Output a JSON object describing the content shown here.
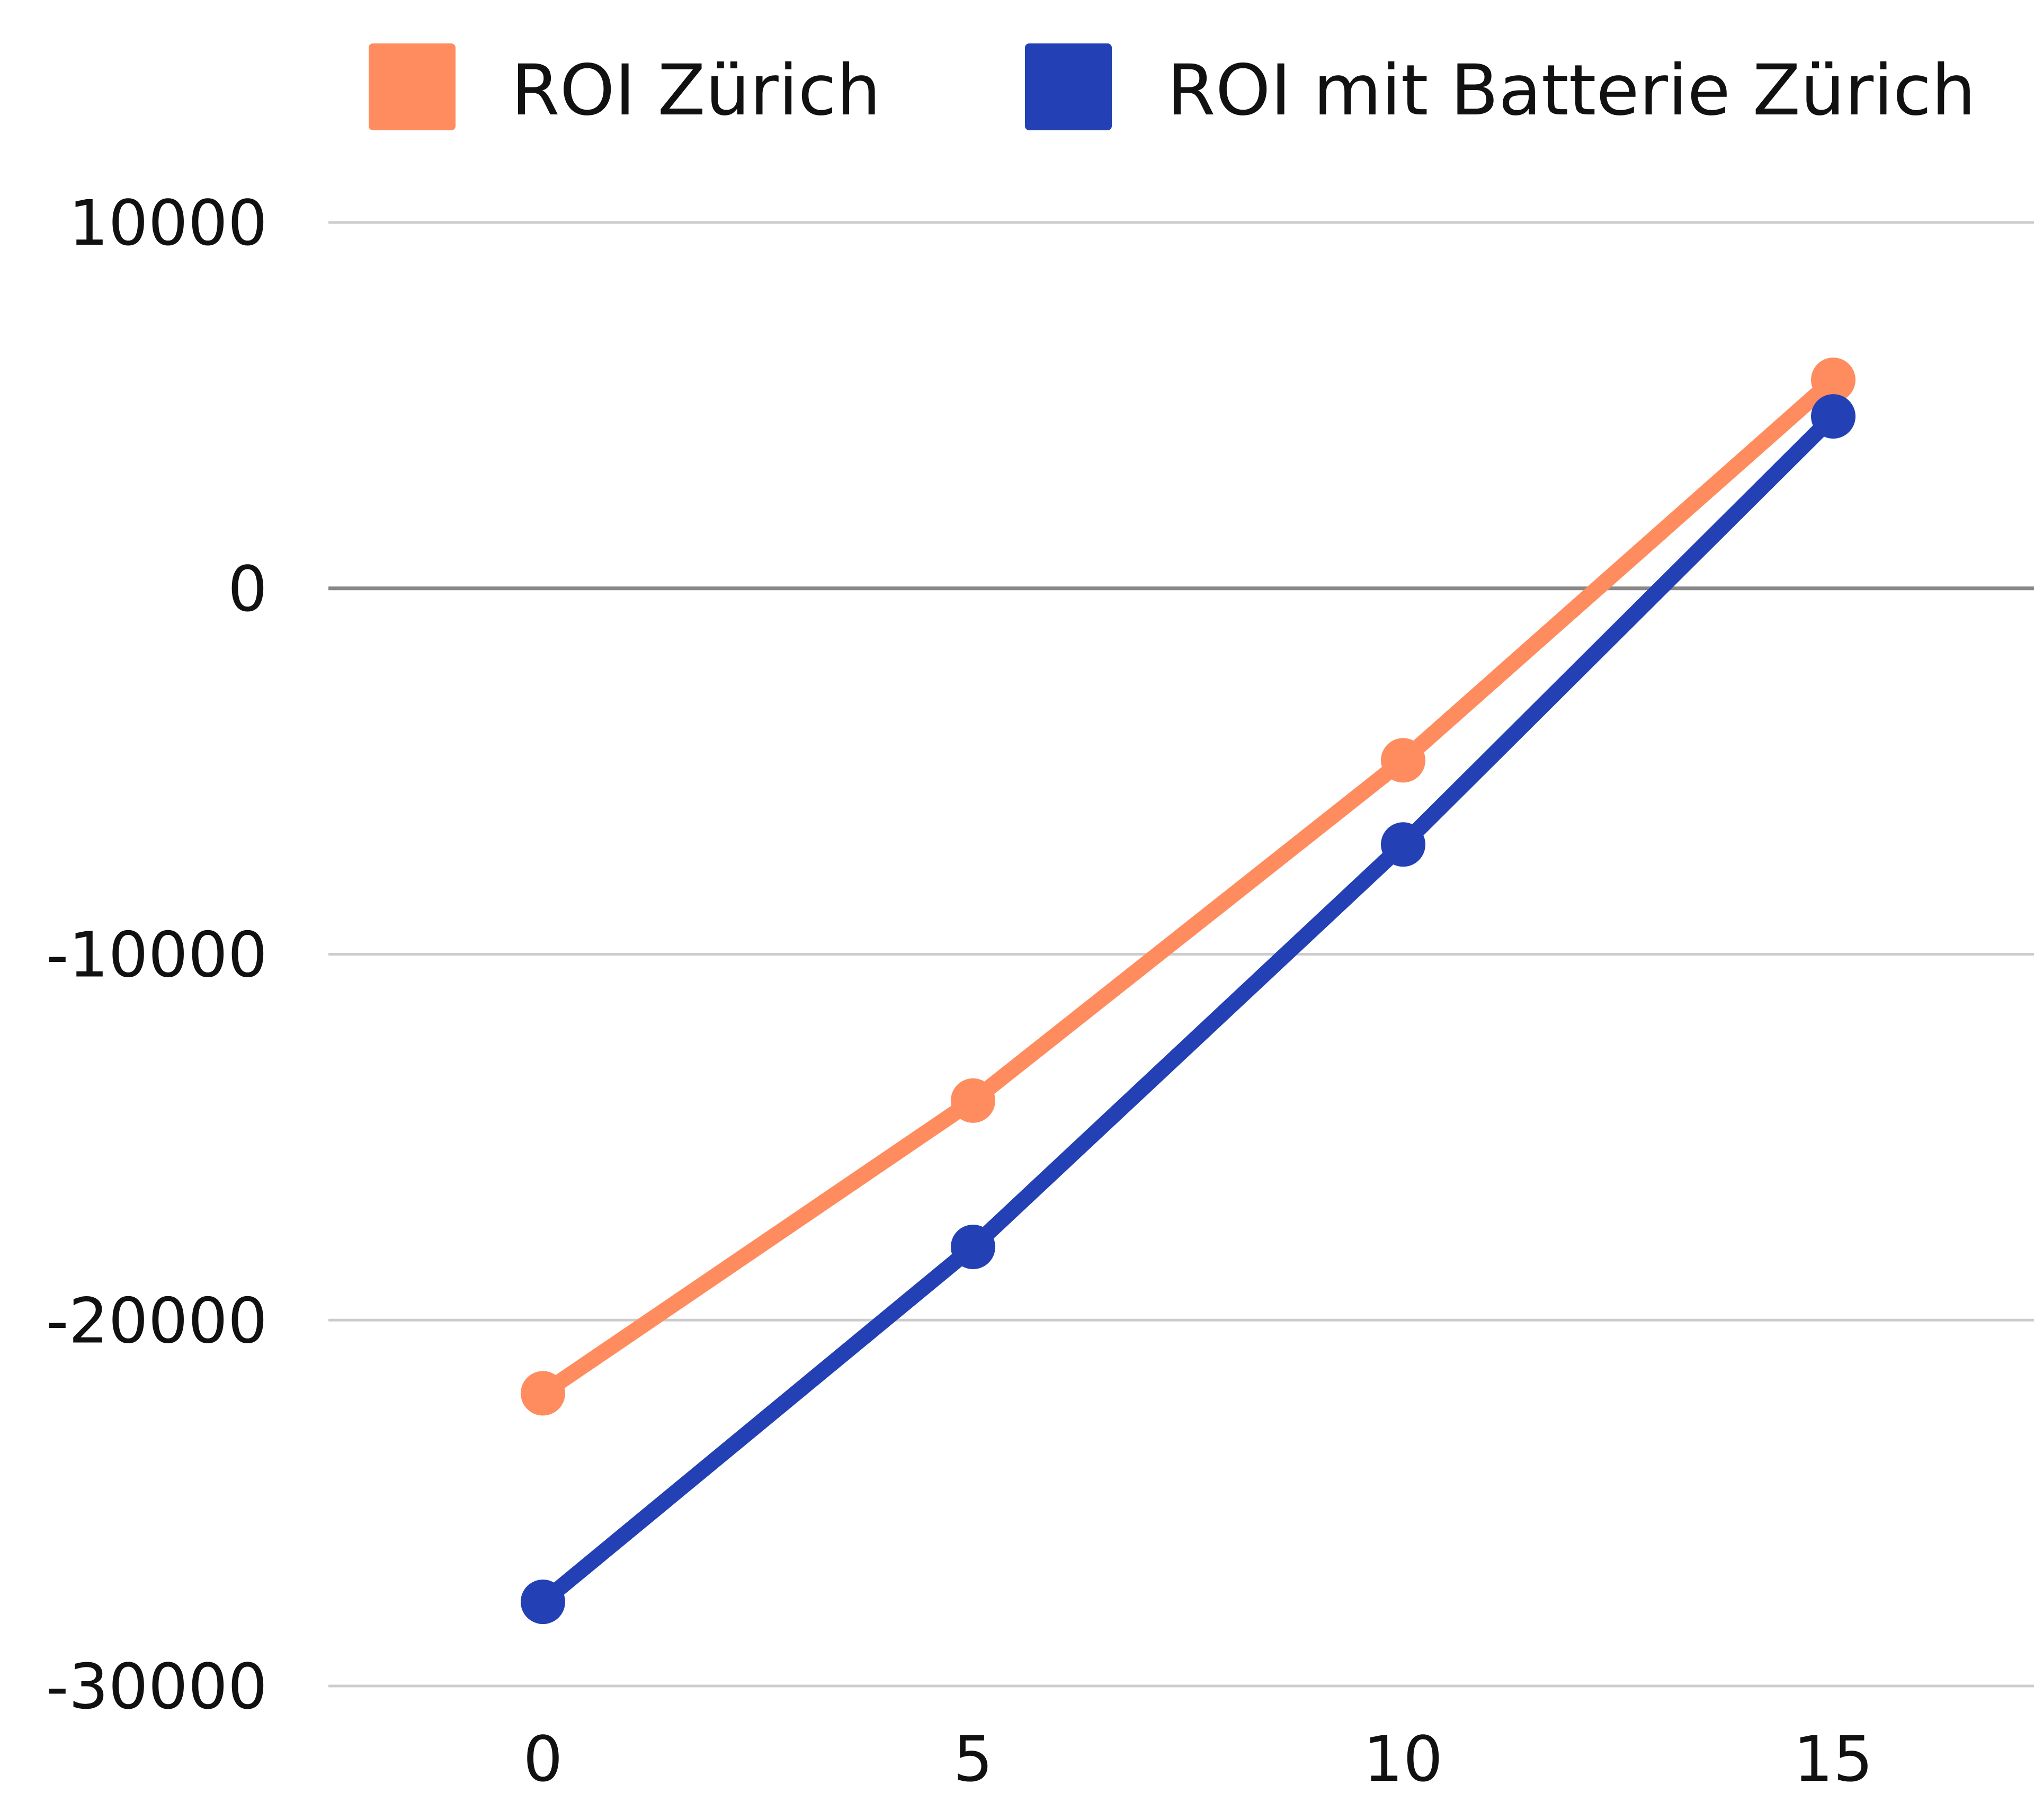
{
  "chart_data": {
    "type": "line",
    "title": "",
    "xlabel": "",
    "ylabel": "",
    "x": [
      0,
      5,
      10,
      15
    ],
    "x_ticks": [
      "0",
      "5",
      "10",
      "15"
    ],
    "y_ticks": [
      "10000",
      "0",
      "-10000",
      "-20000",
      "-30000"
    ],
    "y_tick_values": [
      10000,
      0,
      -10000,
      -20000,
      -30000
    ],
    "xlim": [
      -2.5,
      17.5
    ],
    "ylim": [
      -30000,
      10000
    ],
    "grid": true,
    "legend_position": "top",
    "series": [
      {
        "name": "ROI Zürich",
        "color": "#ff8c5f",
        "values": [
          -22000,
          -14000,
          -4700,
          5700
        ]
      },
      {
        "name": "ROI mit Batterie Zürich",
        "color": "#2340b5",
        "values": [
          -27700,
          -18000,
          -7000,
          4700
        ]
      }
    ]
  }
}
